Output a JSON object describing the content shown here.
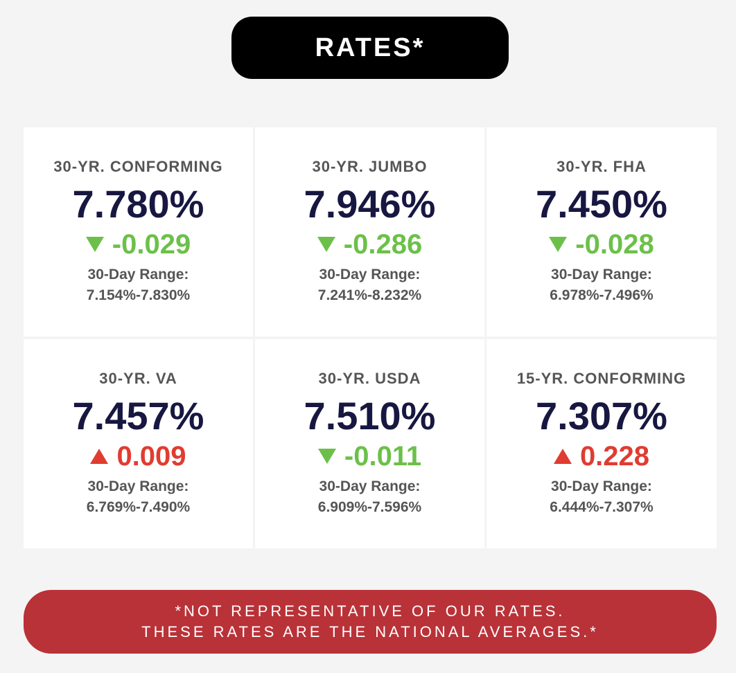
{
  "header": {
    "title": "RATES*"
  },
  "colors": {
    "rate_text": "#171741",
    "down": "#6cc04a",
    "up": "#e03c31",
    "footer_bg": "#b93238",
    "title_bg": "#000000",
    "page_bg": "#f4f4f4"
  },
  "cards": [
    {
      "label": "30-YR. CONFORMING",
      "rate": "7.780%",
      "direction": "down",
      "direction_icon": "triangle-down-icon",
      "change": "-0.029",
      "range_label": "30-Day Range:",
      "range": "7.154%-7.830%"
    },
    {
      "label": "30-YR. JUMBO",
      "rate": "7.946%",
      "direction": "down",
      "direction_icon": "triangle-down-icon",
      "change": "-0.286",
      "range_label": "30-Day Range:",
      "range": "7.241%-8.232%"
    },
    {
      "label": "30-YR. FHA",
      "rate": "7.450%",
      "direction": "down",
      "direction_icon": "triangle-down-icon",
      "change": "-0.028",
      "range_label": "30-Day Range:",
      "range": "6.978%-7.496%"
    },
    {
      "label": "30-YR. VA",
      "rate": "7.457%",
      "direction": "up",
      "direction_icon": "triangle-up-icon",
      "change": "0.009",
      "range_label": "30-Day Range:",
      "range": "6.769%-7.490%"
    },
    {
      "label": "30-YR. USDA",
      "rate": "7.510%",
      "direction": "down",
      "direction_icon": "triangle-down-icon",
      "change": "-0.011",
      "range_label": "30-Day Range:",
      "range": "6.909%-7.596%"
    },
    {
      "label": "15-YR. CONFORMING",
      "rate": "7.307%",
      "direction": "up",
      "direction_icon": "triangle-up-icon",
      "change": "0.228",
      "range_label": "30-Day Range:",
      "range": "6.444%-7.307%"
    }
  ],
  "footer": {
    "line1": "*NOT REPRESENTATIVE OF OUR RATES.",
    "line2": "THESE RATES ARE THE NATIONAL AVERAGES.*"
  }
}
